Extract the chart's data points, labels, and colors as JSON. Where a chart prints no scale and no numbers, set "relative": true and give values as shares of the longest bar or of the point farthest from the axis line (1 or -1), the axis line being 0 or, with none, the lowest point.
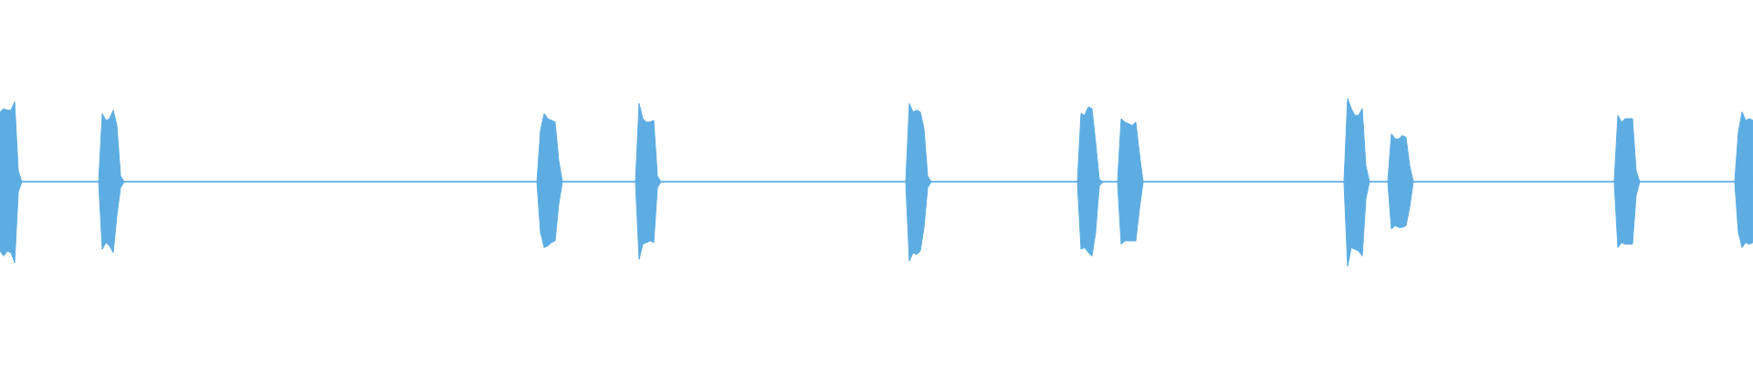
{
  "chart_data": {
    "type": "area",
    "relative": true,
    "ref_lines": [
      {
        "axis": "y",
        "value": 0,
        "color": "#5dade2"
      }
    ],
    "categories": [
      null,
      null,
      null,
      null,
      null,
      null,
      null,
      null,
      null,
      null,
      null,
      null,
      null,
      null,
      null,
      null,
      null,
      null,
      null,
      null,
      null,
      null,
      null,
      null,
      null,
      null,
      null,
      null,
      null,
      null,
      null,
      null,
      null,
      null,
      null,
      null,
      null,
      null,
      null,
      null,
      null,
      null,
      null,
      null,
      null,
      null,
      null,
      null,
      null,
      null,
      null,
      null,
      null,
      null,
      null,
      null,
      null,
      null,
      null,
      null,
      null,
      null,
      null,
      null,
      null,
      null,
      null,
      null,
      null,
      null,
      null,
      null,
      null,
      null,
      null,
      null,
      null,
      null,
      null,
      null,
      null,
      null,
      null,
      null,
      null,
      null,
      null,
      null,
      null,
      null,
      null,
      null,
      null,
      null,
      null,
      null,
      null,
      null,
      null,
      null,
      null,
      null,
      null,
      null,
      null,
      null,
      null,
      null,
      null,
      null,
      null,
      null,
      null,
      null,
      null,
      null,
      null,
      null,
      null,
      null,
      null,
      null,
      null,
      null,
      null,
      null,
      null,
      null,
      null,
      null,
      null,
      null,
      null,
      null,
      null,
      null,
      null,
      null,
      null,
      null,
      null,
      null,
      null,
      null,
      null,
      null,
      null,
      null,
      null,
      null,
      null,
      null,
      null,
      null,
      null,
      null,
      null,
      null,
      null,
      null,
      null,
      null,
      null,
      null,
      null,
      null,
      null,
      null,
      null,
      null,
      null,
      null,
      null,
      null,
      null,
      null,
      null,
      null,
      null,
      null,
      null,
      null,
      null,
      null,
      null,
      null,
      null,
      null,
      null,
      null,
      null,
      null,
      null,
      null,
      null,
      null,
      null,
      null,
      null,
      null,
      null,
      null,
      null,
      null,
      null,
      null,
      null,
      null,
      null,
      null,
      null,
      null,
      null,
      null,
      null,
      null,
      null,
      null,
      null,
      null,
      null,
      null,
      null,
      null,
      null,
      null,
      null,
      null,
      null,
      null,
      null,
      null,
      null,
      null,
      null,
      null,
      null,
      null,
      null,
      null,
      null,
      null,
      null,
      null,
      null,
      null,
      null,
      null,
      null,
      null,
      null,
      null,
      null,
      null,
      null,
      null,
      null,
      null,
      null,
      null,
      null,
      null,
      null,
      null,
      null,
      null,
      null,
      null,
      null,
      null,
      null,
      null,
      null,
      null,
      null,
      null,
      null,
      null,
      null,
      null,
      null,
      null,
      null,
      null,
      null,
      null,
      null,
      null,
      null,
      null,
      null,
      null,
      null,
      null,
      null,
      null,
      null,
      null,
      null,
      null,
      null,
      null,
      null,
      null,
      null,
      null,
      null,
      null,
      null,
      null,
      null,
      null,
      null,
      null,
      null,
      null,
      null,
      null,
      null,
      null,
      null,
      null,
      null,
      null,
      null,
      null,
      null,
      null,
      null,
      null,
      null,
      null,
      null,
      null,
      null,
      null,
      null,
      null,
      null,
      null,
      null,
      null,
      null,
      null,
      null,
      null,
      null,
      null,
      null,
      null,
      null,
      null,
      null,
      null,
      null,
      null,
      null,
      null,
      null,
      null,
      null,
      null,
      null,
      null,
      null,
      null,
      null,
      null,
      null,
      null,
      null,
      null,
      null,
      null,
      null,
      null,
      null,
      null,
      null,
      null,
      null,
      null,
      null,
      null,
      null,
      null,
      null,
      null,
      null,
      null,
      null,
      null,
      null,
      null,
      null,
      null,
      null,
      null,
      null,
      null,
      null,
      null,
      null,
      null,
      null,
      null,
      null,
      null,
      null,
      null,
      null,
      null,
      null,
      null,
      null,
      null,
      null,
      null,
      null,
      null,
      null,
      null,
      null,
      null,
      null,
      null,
      null,
      null,
      null,
      null,
      null,
      null,
      null,
      null,
      null,
      null,
      null,
      null,
      null,
      null,
      null,
      null,
      null,
      null,
      null,
      null,
      null,
      null,
      null,
      null,
      null,
      null,
      null,
      null,
      null,
      null,
      null,
      null,
      null,
      null,
      null,
      null,
      null,
      null,
      null,
      null,
      null,
      null,
      null,
      null,
      null,
      null,
      null,
      null,
      null,
      null,
      null,
      null,
      null,
      null,
      null
    ],
    "series": [
      {
        "color": "#5dade2",
        "values": [
          0.83,
          0.87,
          0.85,
          0.85,
          0.95,
          0.13,
          0,
          0,
          0,
          0,
          0,
          0,
          0,
          0,
          0,
          0,
          0,
          0,
          0,
          0,
          0,
          0,
          0,
          0,
          0,
          0,
          0,
          0,
          0.81,
          0.73,
          0.75,
          0.85,
          0.67,
          0.07,
          0,
          0,
          0,
          0,
          0,
          0,
          0,
          0,
          0,
          0,
          0,
          0,
          0,
          0,
          0,
          0,
          0,
          0,
          0,
          0,
          0,
          0,
          0,
          0,
          0,
          0,
          0,
          0,
          0,
          0,
          0,
          0,
          0,
          0,
          0,
          0,
          0,
          0,
          0,
          0,
          0,
          0,
          0,
          0,
          0,
          0,
          0,
          0,
          0,
          0,
          0,
          0,
          0,
          0,
          0,
          0,
          0,
          0,
          0,
          0,
          0,
          0,
          0,
          0,
          0,
          0,
          0,
          0,
          0,
          0,
          0,
          0,
          0,
          0,
          0,
          0,
          0,
          0,
          0,
          0,
          0,
          0,
          0,
          0,
          0,
          0,
          0,
          0,
          0,
          0,
          0,
          0,
          0,
          0,
          0,
          0,
          0,
          0,
          0,
          0,
          0,
          0,
          0,
          0,
          0,
          0,
          0,
          0,
          0,
          0,
          0,
          0,
          0,
          0,
          0.61,
          0.81,
          0.75,
          0.73,
          0.71,
          0.25,
          0,
          0,
          0,
          0,
          0,
          0,
          0,
          0,
          0,
          0,
          0,
          0,
          0,
          0,
          0,
          0,
          0,
          0,
          0,
          0,
          0,
          0.93,
          0.75,
          0.71,
          0.71,
          0.73,
          0.07,
          0,
          0,
          0,
          0,
          0,
          0,
          0,
          0,
          0,
          0,
          0,
          0,
          0,
          0,
          0,
          0,
          0,
          0,
          0,
          0,
          0,
          0,
          0,
          0,
          0,
          0,
          0,
          0,
          0,
          0,
          0,
          0,
          0,
          0,
          0,
          0,
          0,
          0,
          0,
          0,
          0,
          0,
          0,
          0,
          0,
          0,
          0,
          0,
          0,
          0,
          0,
          0,
          0,
          0,
          0,
          0,
          0,
          0,
          0,
          0,
          0,
          0,
          0,
          0,
          0,
          0,
          0,
          0,
          0.93,
          0.83,
          0.85,
          0.83,
          0.63,
          0.07,
          0,
          0,
          0,
          0,
          0,
          0,
          0,
          0,
          0,
          0,
          0,
          0,
          0,
          0,
          0,
          0,
          0,
          0,
          0,
          0,
          0,
          0,
          0,
          0,
          0,
          0,
          0,
          0,
          0,
          0,
          0,
          0,
          0,
          0,
          0,
          0,
          0,
          0,
          0,
          0,
          0,
          0.81,
          0.79,
          0.89,
          0.87,
          0.47,
          0.03,
          0,
          0,
          0,
          0,
          0,
          0.75,
          0.71,
          0.69,
          0.67,
          0.71,
          0.33,
          0,
          0,
          0,
          0,
          0,
          0,
          0,
          0,
          0,
          0,
          0,
          0,
          0,
          0,
          0,
          0,
          0,
          0,
          0,
          0,
          0,
          0,
          0,
          0,
          0,
          0,
          0,
          0,
          0,
          0,
          0,
          0,
          0,
          0,
          0,
          0,
          0,
          0,
          0,
          0,
          0,
          0,
          0,
          0,
          0,
          0,
          0,
          0,
          0,
          0,
          0,
          0,
          0,
          0,
          0,
          0,
          0.99,
          0.87,
          0.79,
          0.79,
          0.87,
          0.19,
          0,
          0,
          0,
          0,
          0,
          0,
          0.57,
          0.51,
          0.51,
          0.55,
          0.53,
          0.19,
          0,
          0,
          0,
          0,
          0,
          0,
          0,
          0,
          0,
          0,
          0,
          0,
          0,
          0,
          0,
          0,
          0,
          0,
          0,
          0,
          0,
          0,
          0,
          0,
          0,
          0,
          0,
          0,
          0,
          0,
          0,
          0,
          0,
          0,
          0,
          0,
          0,
          0,
          0,
          0,
          0,
          0,
          0,
          0,
          0,
          0,
          0,
          0,
          0,
          0,
          0,
          0,
          0,
          0,
          0,
          0,
          0.79,
          0.71,
          0.75,
          0.75,
          0.75,
          0.13,
          0,
          0,
          0,
          0,
          0,
          0,
          0,
          0,
          0,
          0,
          0,
          0,
          0,
          0,
          0,
          0,
          0,
          0,
          0,
          0,
          0,
          0,
          0,
          0,
          0,
          0,
          0,
          0.59,
          0.83,
          0.73,
          0.75,
          0.73
        ]
      },
      {
        "color": "#5dade2",
        "values": [
          -0.82,
          -0.88,
          -0.82,
          -0.84,
          -0.96,
          -0.12,
          0,
          0,
          0,
          0,
          0,
          0,
          0,
          0,
          0,
          0,
          0,
          0,
          0,
          0,
          0,
          0,
          0,
          0,
          0,
          0,
          0,
          0,
          -0.8,
          -0.72,
          -0.76,
          -0.84,
          -0.4,
          -0.07,
          0,
          0,
          0,
          0,
          0,
          0,
          0,
          0,
          0,
          0,
          0,
          0,
          0,
          0,
          0,
          0,
          0,
          0,
          0,
          0,
          0,
          0,
          0,
          0,
          0,
          0,
          0,
          0,
          0,
          0,
          0,
          0,
          0,
          0,
          0,
          0,
          0,
          0,
          0,
          0,
          0,
          0,
          0,
          0,
          0,
          0,
          0,
          0,
          0,
          0,
          0,
          0,
          0,
          0,
          0,
          0,
          0,
          0,
          0,
          0,
          0,
          0,
          0,
          0,
          0,
          0,
          0,
          0,
          0,
          0,
          0,
          0,
          0,
          0,
          0,
          0,
          0,
          0,
          0,
          0,
          0,
          0,
          0,
          0,
          0,
          0,
          0,
          0,
          0,
          0,
          0,
          0,
          0,
          0,
          0,
          0,
          0,
          0,
          0,
          0,
          0,
          0,
          0,
          0,
          0,
          0,
          0,
          0,
          0,
          0,
          0,
          0,
          0,
          0,
          -0.6,
          -0.78,
          -0.76,
          -0.72,
          -0.7,
          -0.26,
          0,
          0,
          0,
          0,
          0,
          0,
          0,
          0,
          0,
          0,
          0,
          0,
          0,
          0,
          0,
          0,
          0,
          0,
          0,
          0,
          0,
          -0.92,
          -0.74,
          -0.72,
          -0.7,
          -0.72,
          -0.07,
          0,
          0,
          0,
          0,
          0,
          0,
          0,
          0,
          0,
          0,
          0,
          0,
          0,
          0,
          0,
          0,
          0,
          0,
          0,
          0,
          0,
          0,
          0,
          0,
          0,
          0,
          0,
          0,
          0,
          0,
          0,
          0,
          0,
          0,
          0,
          0,
          0,
          0,
          0,
          0,
          0,
          0,
          0,
          0,
          0,
          0,
          0,
          0,
          0,
          0,
          0,
          0,
          0,
          0,
          0,
          0,
          0,
          0,
          0,
          0,
          0,
          0,
          0,
          0,
          0,
          0,
          0,
          0,
          -0.94,
          -0.84,
          -0.86,
          -0.82,
          -0.54,
          -0.07,
          0,
          0,
          0,
          0,
          0,
          0,
          0,
          0,
          0,
          0,
          0,
          0,
          0,
          0,
          0,
          0,
          0,
          0,
          0,
          0,
          0,
          0,
          0,
          0,
          0,
          0,
          0,
          0,
          0,
          0,
          0,
          0,
          0,
          0,
          0,
          0,
          0,
          0,
          0,
          0,
          0,
          -0.8,
          -0.78,
          -0.84,
          -0.88,
          -0.6,
          -0.05,
          0,
          0,
          0,
          0,
          0,
          -0.74,
          -0.7,
          -0.7,
          -0.7,
          -0.7,
          -0.32,
          0,
          0,
          0,
          0,
          0,
          0,
          0,
          0,
          0,
          0,
          0,
          0,
          0,
          0,
          0,
          0,
          0,
          0,
          0,
          0,
          0,
          0,
          0,
          0,
          0,
          0,
          0,
          0,
          0,
          0,
          0,
          0,
          0,
          0,
          0,
          0,
          0,
          0,
          0,
          0,
          0,
          0,
          0,
          0,
          0,
          0,
          0,
          0,
          0,
          0,
          0,
          0,
          0,
          0,
          0,
          0,
          -1,
          -0.78,
          -0.8,
          -0.82,
          -0.88,
          -0.2,
          0,
          0,
          0,
          0,
          0,
          0,
          -0.56,
          -0.52,
          -0.54,
          -0.54,
          -0.52,
          -0.3,
          0,
          0,
          0,
          0,
          0,
          0,
          0,
          0,
          0,
          0,
          0,
          0,
          0,
          0,
          0,
          0,
          0,
          0,
          0,
          0,
          0,
          0,
          0,
          0,
          0,
          0,
          0,
          0,
          0,
          0,
          0,
          0,
          0,
          0,
          0,
          0,
          0,
          0,
          0,
          0,
          0,
          0,
          0,
          0,
          0,
          0,
          0,
          0,
          0,
          0,
          0,
          0,
          0,
          0,
          0,
          0,
          -0.78,
          -0.72,
          -0.74,
          -0.74,
          -0.74,
          -0.16,
          0,
          0,
          0,
          0,
          0,
          0,
          0,
          0,
          0,
          0,
          0,
          0,
          0,
          0,
          0,
          0,
          0,
          0,
          0,
          0,
          0,
          0,
          0,
          0,
          0,
          0,
          0,
          -0.6,
          -0.78,
          -0.72,
          -0.74,
          -0.72
        ]
      }
    ]
  }
}
